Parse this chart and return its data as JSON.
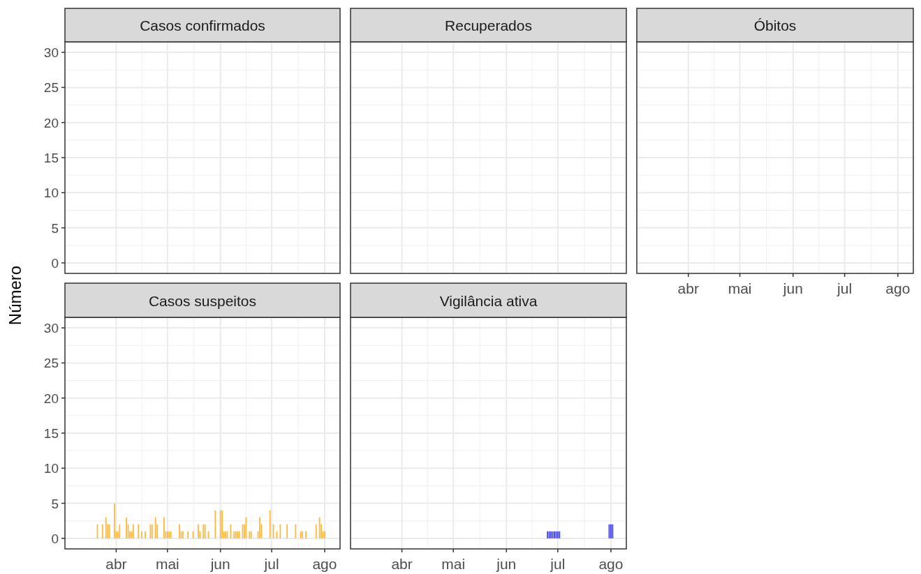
{
  "chart_data": [
    {
      "type": "bar",
      "title": "Casos confirmados",
      "tick_labels": "y",
      "grid": true,
      "xlim": [
        "--03-02",
        "--08-10"
      ],
      "ylim": [
        -1.5,
        31.5
      ],
      "yticks": [
        0,
        5,
        10,
        15,
        20,
        25,
        30
      ],
      "xticks": [
        {
          "value": "--04-01",
          "label": null
        },
        {
          "value": "--05-01",
          "label": null
        },
        {
          "value": "--06-01",
          "label": null
        },
        {
          "value": "--07-01",
          "label": null
        },
        {
          "value": "--08-01",
          "label": null
        }
      ],
      "x": [
        "--03-09",
        "--03-10",
        "--03-11",
        "--03-12",
        "--03-13",
        "--03-14",
        "--03-15",
        "--03-16",
        "--03-17",
        "--03-18",
        "--03-19",
        "--03-20",
        "--03-21",
        "--03-22",
        "--03-23",
        "--03-24",
        "--03-25",
        "--03-26",
        "--03-27",
        "--03-28",
        "--03-29",
        "--03-30",
        "--03-31",
        "--04-01",
        "--04-02",
        "--04-03",
        "--04-04",
        "--04-05",
        "--04-06",
        "--04-07",
        "--04-08",
        "--04-09",
        "--04-10",
        "--04-11",
        "--04-12",
        "--04-13",
        "--04-14",
        "--04-15",
        "--04-16",
        "--04-17",
        "--04-18",
        "--04-19",
        "--04-20",
        "--04-21",
        "--04-22",
        "--04-23",
        "--04-24",
        "--04-25",
        "--04-26",
        "--04-27",
        "--04-28",
        "--04-29",
        "--04-30",
        "--05-01",
        "--05-02",
        "--05-03",
        "--05-04",
        "--05-05",
        "--05-06",
        "--05-07",
        "--05-08",
        "--05-09",
        "--05-10",
        "--05-11",
        "--05-12",
        "--05-13",
        "--05-14",
        "--05-15",
        "--05-16",
        "--05-17",
        "--05-18",
        "--05-19",
        "--05-20",
        "--05-21",
        "--05-22",
        "--05-23",
        "--05-24",
        "--05-25",
        "--05-26",
        "--05-27",
        "--05-28",
        "--05-29",
        "--05-30",
        "--05-31",
        "--06-01",
        "--06-02",
        "--06-03",
        "--06-04",
        "--06-05",
        "--06-06",
        "--06-07",
        "--06-08",
        "--06-09",
        "--06-10",
        "--06-11",
        "--06-12",
        "--06-13",
        "--06-14",
        "--06-15",
        "--06-16",
        "--06-17",
        "--06-18",
        "--06-19",
        "--06-20",
        "--06-21",
        "--06-22",
        "--06-23",
        "--06-24",
        "--06-25",
        "--06-26",
        "--06-27",
        "--06-28",
        "--06-29",
        "--06-30",
        "--07-01",
        "--07-02",
        "--07-03",
        "--07-04",
        "--07-05",
        "--07-06",
        "--07-07",
        "--07-08",
        "--07-09",
        "--07-10",
        "--07-11",
        "--07-12",
        "--07-13",
        "--07-14",
        "--07-15",
        "--07-16",
        "--07-17",
        "--07-18",
        "--07-19",
        "--07-20",
        "--07-21",
        "--07-22",
        "--07-23",
        "--07-24",
        "--07-25",
        "--07-26",
        "--07-27",
        "--07-28",
        "--07-29",
        "--07-30",
        "--07-31",
        "--08-01",
        "--08-02"
      ],
      "series": [
        {
          "color": "#cccccc",
          "values": [
            0,
            0,
            0,
            0,
            0,
            0,
            0,
            0,
            0,
            0,
            0,
            0,
            0,
            0,
            0,
            0,
            0,
            0,
            0,
            0,
            0,
            0,
            0,
            0,
            0,
            0,
            0,
            0,
            0,
            0,
            0,
            0,
            0,
            0,
            0,
            0,
            0,
            0,
            0,
            0,
            0,
            0,
            0,
            0,
            0,
            0,
            0,
            0,
            0,
            0,
            0,
            0,
            0,
            0,
            0,
            0,
            0,
            0,
            0,
            0,
            0,
            0,
            0,
            0,
            0,
            0,
            0,
            0,
            0,
            0,
            0,
            0,
            0,
            0,
            0,
            0,
            0,
            0,
            0,
            0,
            0,
            0,
            0,
            0,
            0,
            0,
            0,
            0,
            0,
            0,
            0,
            0,
            0,
            0,
            0,
            0,
            0,
            0,
            0,
            0,
            0,
            0,
            0,
            0,
            0,
            0,
            0,
            0,
            0,
            0,
            0,
            0,
            0,
            0,
            0,
            0,
            0,
            0,
            0,
            0,
            0,
            0,
            0,
            0,
            0,
            0,
            0,
            0,
            0,
            0,
            0,
            0,
            0,
            0,
            0,
            0,
            0,
            0,
            0,
            0,
            0,
            0,
            0,
            0,
            0,
            0,
            0
          ]
        }
      ]
    },
    {
      "type": "bar",
      "title": "Recuperados",
      "tick_labels": false,
      "grid": true,
      "xlim": [
        "--03-02",
        "--08-10"
      ],
      "ylim": [
        -1.5,
        31.5
      ],
      "yticks": [
        0,
        5,
        10,
        15,
        20,
        25,
        30
      ],
      "xticks": [
        {
          "value": "--04-01",
          "label": null
        },
        {
          "value": "--05-01",
          "label": null
        },
        {
          "value": "--06-01",
          "label": null
        },
        {
          "value": "--07-01",
          "label": null
        },
        {
          "value": "--08-01",
          "label": null
        }
      ],
      "x": [
        "--03-09",
        "--03-10",
        "--03-11",
        "--03-12",
        "--03-13",
        "--03-14",
        "--03-15",
        "--03-16",
        "--03-17",
        "--03-18",
        "--03-19",
        "--03-20",
        "--03-21",
        "--03-22",
        "--03-23",
        "--03-24",
        "--03-25",
        "--03-26",
        "--03-27",
        "--03-28",
        "--03-29",
        "--03-30",
        "--03-31",
        "--04-01",
        "--04-02",
        "--04-03",
        "--04-04",
        "--04-05",
        "--04-06",
        "--04-07",
        "--04-08",
        "--04-09",
        "--04-10",
        "--04-11",
        "--04-12",
        "--04-13",
        "--04-14",
        "--04-15",
        "--04-16",
        "--04-17",
        "--04-18",
        "--04-19",
        "--04-20",
        "--04-21",
        "--04-22",
        "--04-23",
        "--04-24",
        "--04-25",
        "--04-26",
        "--04-27",
        "--04-28",
        "--04-29",
        "--04-30",
        "--05-01",
        "--05-02",
        "--05-03",
        "--05-04",
        "--05-05",
        "--05-06",
        "--05-07",
        "--05-08",
        "--05-09",
        "--05-10",
        "--05-11",
        "--05-12",
        "--05-13",
        "--05-14",
        "--05-15",
        "--05-16",
        "--05-17",
        "--05-18",
        "--05-19",
        "--05-20",
        "--05-21",
        "--05-22",
        "--05-23",
        "--05-24",
        "--05-25",
        "--05-26",
        "--05-27",
        "--05-28",
        "--05-29",
        "--05-30",
        "--05-31",
        "--06-01",
        "--06-02",
        "--06-03",
        "--06-04",
        "--06-05",
        "--06-06",
        "--06-07",
        "--06-08",
        "--06-09",
        "--06-10",
        "--06-11",
        "--06-12",
        "--06-13",
        "--06-14",
        "--06-15",
        "--06-16",
        "--06-17",
        "--06-18",
        "--06-19",
        "--06-20",
        "--06-21",
        "--06-22",
        "--06-23",
        "--06-24",
        "--06-25",
        "--06-26",
        "--06-27",
        "--06-28",
        "--06-29",
        "--06-30",
        "--07-01",
        "--07-02",
        "--07-03",
        "--07-04",
        "--07-05",
        "--07-06",
        "--07-07",
        "--07-08",
        "--07-09",
        "--07-10",
        "--07-11",
        "--07-12",
        "--07-13",
        "--07-14",
        "--07-15",
        "--07-16",
        "--07-17",
        "--07-18",
        "--07-19",
        "--07-20",
        "--07-21",
        "--07-22",
        "--07-23",
        "--07-24",
        "--07-25",
        "--07-26",
        "--07-27",
        "--07-28",
        "--07-29",
        "--07-30",
        "--07-31",
        "--08-01",
        "--08-02"
      ],
      "series": [
        {
          "color": "#cccccc",
          "values": [
            0,
            0,
            0,
            0,
            0,
            0,
            0,
            0,
            0,
            0,
            0,
            0,
            0,
            0,
            0,
            0,
            0,
            0,
            0,
            0,
            0,
            0,
            0,
            0,
            0,
            0,
            0,
            0,
            0,
            0,
            0,
            0,
            0,
            0,
            0,
            0,
            0,
            0,
            0,
            0,
            0,
            0,
            0,
            0,
            0,
            0,
            0,
            0,
            0,
            0,
            0,
            0,
            0,
            0,
            0,
            0,
            0,
            0,
            0,
            0,
            0,
            0,
            0,
            0,
            0,
            0,
            0,
            0,
            0,
            0,
            0,
            0,
            0,
            0,
            0,
            0,
            0,
            0,
            0,
            0,
            0,
            0,
            0,
            0,
            0,
            0,
            0,
            0,
            0,
            0,
            0,
            0,
            0,
            0,
            0,
            0,
            0,
            0,
            0,
            0,
            0,
            0,
            0,
            0,
            0,
            0,
            0,
            0,
            0,
            0,
            0,
            0,
            0,
            0,
            0,
            0,
            0,
            0,
            0,
            0,
            0,
            0,
            0,
            0,
            0,
            0,
            0,
            0,
            0,
            0,
            0,
            0,
            0,
            0,
            0,
            0,
            0,
            0,
            0,
            0,
            0,
            0,
            0,
            0,
            0,
            0,
            0
          ]
        }
      ]
    },
    {
      "type": "bar",
      "title": "Óbitos",
      "tick_labels": "x",
      "grid": true,
      "xlim": [
        "--03-02",
        "--08-10"
      ],
      "ylim": [
        -1.5,
        31.5
      ],
      "yticks": [
        0,
        5,
        10,
        15,
        20,
        25,
        30
      ],
      "xticks": [
        {
          "value": "--04-01",
          "label": "abr"
        },
        {
          "value": "--05-01",
          "label": "mai"
        },
        {
          "value": "--06-01",
          "label": "jun"
        },
        {
          "value": "--07-01",
          "label": "jul"
        },
        {
          "value": "--08-01",
          "label": "ago"
        }
      ],
      "x": [
        "--03-09",
        "--03-10",
        "--03-11",
        "--03-12",
        "--03-13",
        "--03-14",
        "--03-15",
        "--03-16",
        "--03-17",
        "--03-18",
        "--03-19",
        "--03-20",
        "--03-21",
        "--03-22",
        "--03-23",
        "--03-24",
        "--03-25",
        "--03-26",
        "--03-27",
        "--03-28",
        "--03-29",
        "--03-30",
        "--03-31",
        "--04-01",
        "--04-02",
        "--04-03",
        "--04-04",
        "--04-05",
        "--04-06",
        "--04-07",
        "--04-08",
        "--04-09",
        "--04-10",
        "--04-11",
        "--04-12",
        "--04-13",
        "--04-14",
        "--04-15",
        "--04-16",
        "--04-17",
        "--04-18",
        "--04-19",
        "--04-20",
        "--04-21",
        "--04-22",
        "--04-23",
        "--04-24",
        "--04-25",
        "--04-26",
        "--04-27",
        "--04-28",
        "--04-29",
        "--04-30",
        "--05-01",
        "--05-02",
        "--05-03",
        "--05-04",
        "--05-05",
        "--05-06",
        "--05-07",
        "--05-08",
        "--05-09",
        "--05-10",
        "--05-11",
        "--05-12",
        "--05-13",
        "--05-14",
        "--05-15",
        "--05-16",
        "--05-17",
        "--05-18",
        "--05-19",
        "--05-20",
        "--05-21",
        "--05-22",
        "--05-23",
        "--05-24",
        "--05-25",
        "--05-26",
        "--05-27",
        "--05-28",
        "--05-29",
        "--05-30",
        "--05-31",
        "--06-01",
        "--06-02",
        "--06-03",
        "--06-04",
        "--06-05",
        "--06-06",
        "--06-07",
        "--06-08",
        "--06-09",
        "--06-10",
        "--06-11",
        "--06-12",
        "--06-13",
        "--06-14",
        "--06-15",
        "--06-16",
        "--06-17",
        "--06-18",
        "--06-19",
        "--06-20",
        "--06-21",
        "--06-22",
        "--06-23",
        "--06-24",
        "--06-25",
        "--06-26",
        "--06-27",
        "--06-28",
        "--06-29",
        "--06-30",
        "--07-01",
        "--07-02",
        "--07-03",
        "--07-04",
        "--07-05",
        "--07-06",
        "--07-07",
        "--07-08",
        "--07-09",
        "--07-10",
        "--07-11",
        "--07-12",
        "--07-13",
        "--07-14",
        "--07-15",
        "--07-16",
        "--07-17",
        "--07-18",
        "--07-19",
        "--07-20",
        "--07-21",
        "--07-22",
        "--07-23",
        "--07-24",
        "--07-25",
        "--07-26",
        "--07-27",
        "--07-28",
        "--07-29",
        "--07-30",
        "--07-31",
        "--08-01",
        "--08-02"
      ],
      "series": [
        {
          "color": "#cccccc",
          "values": [
            0,
            0,
            0,
            0,
            0,
            0,
            0,
            0,
            0,
            0,
            0,
            0,
            0,
            0,
            0,
            0,
            0,
            0,
            0,
            0,
            0,
            0,
            0,
            0,
            0,
            0,
            0,
            0,
            0,
            0,
            0,
            0,
            0,
            0,
            0,
            0,
            0,
            0,
            0,
            0,
            0,
            0,
            0,
            0,
            0,
            0,
            0,
            0,
            0,
            0,
            0,
            0,
            0,
            0,
            0,
            0,
            0,
            0,
            0,
            0,
            0,
            0,
            0,
            0,
            0,
            0,
            0,
            0,
            0,
            0,
            0,
            0,
            0,
            0,
            0,
            0,
            0,
            0,
            0,
            0,
            0,
            0,
            0,
            0,
            0,
            0,
            0,
            0,
            0,
            0,
            0,
            0,
            0,
            0,
            0,
            0,
            0,
            0,
            0,
            0,
            0,
            0,
            0,
            0,
            0,
            0,
            0,
            0,
            0,
            0,
            0,
            0,
            0,
            0,
            0,
            0,
            0,
            0,
            0,
            0,
            0,
            0,
            0,
            0,
            0,
            0,
            0,
            0,
            0,
            0,
            0,
            0,
            0,
            0,
            0,
            0,
            0,
            0,
            0,
            0,
            0,
            0,
            0,
            0,
            0,
            0,
            0
          ]
        }
      ]
    },
    {
      "type": "bar",
      "title": "Casos suspeitos",
      "ylabel": "Número",
      "grid": true,
      "xlim": [
        "--03-02",
        "--08-10"
      ],
      "ylim": [
        -1.5,
        31.5
      ],
      "yticks": [
        0,
        5,
        10,
        15,
        20,
        25,
        30
      ],
      "xticks": [
        {
          "value": "--04-01",
          "label": "abr"
        },
        {
          "value": "--05-01",
          "label": "mai"
        },
        {
          "value": "--06-01",
          "label": "jun"
        },
        {
          "value": "--07-01",
          "label": "jul"
        },
        {
          "value": "--08-01",
          "label": "ago"
        }
      ],
      "x": [
        "--03-09",
        "--03-10",
        "--03-11",
        "--03-12",
        "--03-13",
        "--03-14",
        "--03-15",
        "--03-16",
        "--03-17",
        "--03-18",
        "--03-19",
        "--03-20",
        "--03-21",
        "--03-22",
        "--03-23",
        "--03-24",
        "--03-25",
        "--03-26",
        "--03-27",
        "--03-28",
        "--03-29",
        "--03-30",
        "--03-31",
        "--04-01",
        "--04-02",
        "--04-03",
        "--04-04",
        "--04-05",
        "--04-06",
        "--04-07",
        "--04-08",
        "--04-09",
        "--04-10",
        "--04-11",
        "--04-12",
        "--04-13",
        "--04-14",
        "--04-15",
        "--04-16",
        "--04-17",
        "--04-18",
        "--04-19",
        "--04-20",
        "--04-21",
        "--04-22",
        "--04-23",
        "--04-24",
        "--04-25",
        "--04-26",
        "--04-27",
        "--04-28",
        "--04-29",
        "--04-30",
        "--05-01",
        "--05-02",
        "--05-03",
        "--05-04",
        "--05-05",
        "--05-06",
        "--05-07",
        "--05-08",
        "--05-09",
        "--05-10",
        "--05-11",
        "--05-12",
        "--05-13",
        "--05-14",
        "--05-15",
        "--05-16",
        "--05-17",
        "--05-18",
        "--05-19",
        "--05-20",
        "--05-21",
        "--05-22",
        "--05-23",
        "--05-24",
        "--05-25",
        "--05-26",
        "--05-27",
        "--05-28",
        "--05-29",
        "--05-30",
        "--05-31",
        "--06-01",
        "--06-02",
        "--06-03",
        "--06-04",
        "--06-05",
        "--06-06",
        "--06-07",
        "--06-08",
        "--06-09",
        "--06-10",
        "--06-11",
        "--06-12",
        "--06-13",
        "--06-14",
        "--06-15",
        "--06-16",
        "--06-17",
        "--06-18",
        "--06-19",
        "--06-20",
        "--06-21",
        "--06-22",
        "--06-23",
        "--06-24",
        "--06-25",
        "--06-26",
        "--06-27",
        "--06-28",
        "--06-29",
        "--06-30",
        "--07-01",
        "--07-02",
        "--07-03",
        "--07-04",
        "--07-05",
        "--07-06",
        "--07-07",
        "--07-08",
        "--07-09",
        "--07-10",
        "--07-11",
        "--07-12",
        "--07-13",
        "--07-14",
        "--07-15",
        "--07-16",
        "--07-17",
        "--07-18",
        "--07-19",
        "--07-20",
        "--07-21",
        "--07-22",
        "--07-23",
        "--07-24",
        "--07-25",
        "--07-26",
        "--07-27",
        "--07-28",
        "--07-29",
        "--07-30",
        "--07-31",
        "--08-01",
        "--08-02"
      ],
      "series": [
        {
          "color": "#ffb93f",
          "values": [
            0,
            0,
            0,
            0,
            0,
            0,
            0,
            0,
            0,
            0,
            0,
            0,
            2,
            0,
            0,
            2,
            0,
            3,
            2,
            2,
            0,
            0,
            5,
            1,
            1,
            2,
            0,
            0,
            0,
            3,
            2,
            1,
            1,
            2,
            0,
            0,
            2,
            0,
            1,
            0,
            1,
            0,
            0,
            2,
            2,
            0,
            3,
            2,
            0,
            0,
            0,
            3,
            1,
            1,
            1,
            1,
            0,
            0,
            0,
            0,
            2,
            1,
            1,
            0,
            0,
            1,
            0,
            0,
            1,
            0,
            0,
            2,
            1,
            0,
            2,
            2,
            0,
            1,
            0,
            0,
            0,
            4,
            0,
            0,
            4,
            4,
            1,
            1,
            1,
            0,
            2,
            0,
            1,
            1,
            1,
            1,
            0,
            2,
            2,
            3,
            0,
            1,
            1,
            0,
            0,
            0,
            1,
            3,
            2,
            0,
            0,
            0,
            0,
            4,
            0,
            2,
            0,
            1,
            0,
            2,
            0,
            0,
            0,
            2,
            0,
            0,
            0,
            0,
            2,
            0,
            0,
            1,
            1,
            0,
            1,
            0,
            0,
            0,
            0,
            0,
            2,
            0,
            3,
            2,
            1,
            1,
            0
          ]
        }
      ]
    },
    {
      "type": "bar",
      "title": "Vigilância ativa",
      "tick_labels": "x",
      "grid": true,
      "xlim": [
        "--03-02",
        "--08-10"
      ],
      "ylim": [
        -1.5,
        31.5
      ],
      "yticks": [
        0,
        5,
        10,
        15,
        20,
        25,
        30
      ],
      "xticks": [
        {
          "value": "--04-01",
          "label": "abr"
        },
        {
          "value": "--05-01",
          "label": "mai"
        },
        {
          "value": "--06-01",
          "label": "jun"
        },
        {
          "value": "--07-01",
          "label": "jul"
        },
        {
          "value": "--08-01",
          "label": "ago"
        }
      ],
      "x": [
        "--03-09",
        "--03-10",
        "--03-11",
        "--03-12",
        "--03-13",
        "--03-14",
        "--03-15",
        "--03-16",
        "--03-17",
        "--03-18",
        "--03-19",
        "--03-20",
        "--03-21",
        "--03-22",
        "--03-23",
        "--03-24",
        "--03-25",
        "--03-26",
        "--03-27",
        "--03-28",
        "--03-29",
        "--03-30",
        "--03-31",
        "--04-01",
        "--04-02",
        "--04-03",
        "--04-04",
        "--04-05",
        "--04-06",
        "--04-07",
        "--04-08",
        "--04-09",
        "--04-10",
        "--04-11",
        "--04-12",
        "--04-13",
        "--04-14",
        "--04-15",
        "--04-16",
        "--04-17",
        "--04-18",
        "--04-19",
        "--04-20",
        "--04-21",
        "--04-22",
        "--04-23",
        "--04-24",
        "--04-25",
        "--04-26",
        "--04-27",
        "--04-28",
        "--04-29",
        "--04-30",
        "--05-01",
        "--05-02",
        "--05-03",
        "--05-04",
        "--05-05",
        "--05-06",
        "--05-07",
        "--05-08",
        "--05-09",
        "--05-10",
        "--05-11",
        "--05-12",
        "--05-13",
        "--05-14",
        "--05-15",
        "--05-16",
        "--05-17",
        "--05-18",
        "--05-19",
        "--05-20",
        "--05-21",
        "--05-22",
        "--05-23",
        "--05-24",
        "--05-25",
        "--05-26",
        "--05-27",
        "--05-28",
        "--05-29",
        "--05-30",
        "--05-31",
        "--06-01",
        "--06-02",
        "--06-03",
        "--06-04",
        "--06-05",
        "--06-06",
        "--06-07",
        "--06-08",
        "--06-09",
        "--06-10",
        "--06-11",
        "--06-12",
        "--06-13",
        "--06-14",
        "--06-15",
        "--06-16",
        "--06-17",
        "--06-18",
        "--06-19",
        "--06-20",
        "--06-21",
        "--06-22",
        "--06-23",
        "--06-24",
        "--06-25",
        "--06-26",
        "--06-27",
        "--06-28",
        "--06-29",
        "--06-30",
        "--07-01",
        "--07-02",
        "--07-03",
        "--07-04",
        "--07-05",
        "--07-06",
        "--07-07",
        "--07-08",
        "--07-09",
        "--07-10",
        "--07-11",
        "--07-12",
        "--07-13",
        "--07-14",
        "--07-15",
        "--07-16",
        "--07-17",
        "--07-18",
        "--07-19",
        "--07-20",
        "--07-21",
        "--07-22",
        "--07-23",
        "--07-24",
        "--07-25",
        "--07-26",
        "--07-27",
        "--07-28",
        "--07-29",
        "--07-30",
        "--07-31",
        "--08-01",
        "--08-02"
      ],
      "series": [
        {
          "color": "#3f3fff",
          "values": [
            0,
            0,
            0,
            0,
            0,
            0,
            0,
            0,
            0,
            0,
            0,
            0,
            0,
            0,
            0,
            0,
            0,
            0,
            0,
            0,
            0,
            0,
            0,
            0,
            0,
            0,
            0,
            0,
            0,
            0,
            0,
            0,
            0,
            0,
            0,
            0,
            0,
            0,
            0,
            0,
            0,
            0,
            0,
            0,
            0,
            0,
            0,
            0,
            0,
            0,
            0,
            0,
            0,
            0,
            0,
            0,
            0,
            0,
            0,
            0,
            0,
            0,
            0,
            0,
            0,
            0,
            0,
            0,
            0,
            0,
            0,
            0,
            0,
            0,
            0,
            0,
            0,
            0,
            0,
            0,
            0,
            0,
            0,
            0,
            0,
            0,
            0,
            0,
            0,
            0,
            0,
            0,
            0,
            0,
            0,
            0,
            0,
            0,
            0,
            0,
            0,
            0,
            0,
            0,
            0,
            0,
            0,
            0,
            1,
            1,
            1,
            1,
            1,
            1,
            1,
            1,
            0,
            0,
            0,
            0,
            0,
            0,
            0,
            0,
            0,
            0,
            0,
            0,
            0,
            0,
            0,
            0,
            0,
            0,
            0,
            0,
            0,
            0,
            0,
            0,
            0,
            0,
            0,
            0,
            2,
            2,
            2
          ]
        }
      ]
    }
  ]
}
